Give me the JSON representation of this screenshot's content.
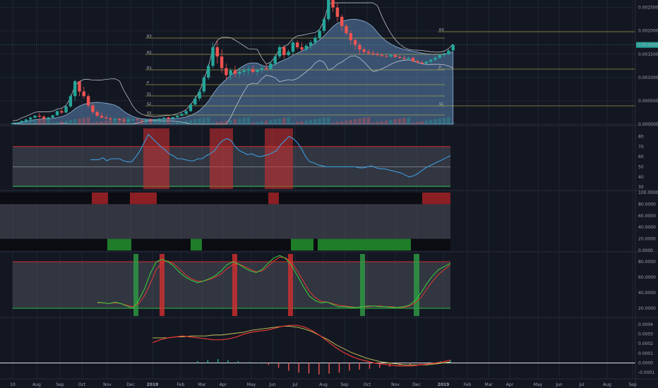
{
  "colors": {
    "background": "#131722",
    "grid": "#1f2433",
    "up": "#26a69a",
    "down": "#ef5350",
    "pivot": "#b9b44a",
    "band_fill": "#5b84b1",
    "rsi_line": "#3d9bdc",
    "red_zone": "#d32f2f",
    "green_zone": "#2e9e44",
    "stoch_k": "#3ad13a",
    "stoch_d": "#e53935",
    "signal": "#c9c958",
    "current_price_bg": "#26a69a"
  },
  "price_axis": {
    "ticks": [
      "0.0025000",
      "0.0020000",
      "0.0015000",
      "0.0010000",
      "0.0005000",
      "0.0000000"
    ],
    "current_price": "0.0016982"
  },
  "pivots": {
    "labels": [
      "R3",
      "R2",
      "R1",
      "P",
      "S1",
      "S2",
      "S3"
    ],
    "right_labels": [
      "R3",
      "P",
      "S1"
    ]
  },
  "rsi_axis": {
    "ticks": [
      "80",
      "70",
      "60",
      "50",
      "40",
      "30"
    ]
  },
  "mfi_axis": {
    "ticks": [
      "100.0000",
      "80.0000",
      "60.0000",
      "40.0000",
      "20.0000",
      "0.0000"
    ]
  },
  "stoch_axis": {
    "ticks": [
      "80.0000",
      "60.0000",
      "40.0000",
      "20.0000"
    ]
  },
  "macd_axis": {
    "ticks": [
      "0.0004",
      "0.0003",
      "0.0002",
      "0.0001",
      "0.0000",
      "-0.0001"
    ]
  },
  "time_axis": {
    "labels": [
      "10",
      "Aug",
      "Sep",
      "Oct",
      "Nov",
      "Dec",
      "2018",
      "Feb",
      "Mar",
      "Apr",
      "May",
      "Jun",
      "Jul",
      "Aug",
      "Sep",
      "Oct",
      "Nov",
      "Dec",
      "2019",
      "Feb",
      "Mar",
      "Apr",
      "May",
      "Jun",
      "Jul",
      "Aug",
      "Sep"
    ]
  },
  "chart_data": [
    {
      "type": "candlestick",
      "name": "price",
      "ylim": [
        0,
        0.0026
      ],
      "x_unit": "weeks",
      "candles": [
        [
          1e-05,
          2e-05,
          1e-05,
          2e-05
        ],
        [
          2e-05,
          4e-05,
          2e-05,
          3e-05
        ],
        [
          3e-05,
          8e-05,
          3e-05,
          7e-05
        ],
        [
          7e-05,
          0.00012,
          6e-05,
          0.0001
        ],
        [
          0.0001,
          0.00016,
          8e-05,
          0.00014
        ],
        [
          0.00014,
          0.0002,
          0.00012,
          0.00018
        ],
        [
          0.00018,
          0.00024,
          0.00014,
          0.00016
        ],
        [
          0.00016,
          0.00019,
          0.0001,
          0.00012
        ],
        [
          0.00012,
          0.00016,
          0.0001,
          0.00014
        ],
        [
          0.00014,
          0.0002,
          0.00012,
          0.00019
        ],
        [
          0.00019,
          0.0003,
          0.00017,
          0.00028
        ],
        [
          0.00028,
          0.00034,
          0.00022,
          0.00025
        ],
        [
          0.00025,
          0.0004,
          0.00023,
          0.00038
        ],
        [
          0.00038,
          0.00064,
          0.00035,
          0.0006
        ],
        [
          0.0006,
          0.00095,
          0.0005,
          0.00092
        ],
        [
          0.00092,
          0.0009,
          0.0006,
          0.0007
        ],
        [
          0.0007,
          0.0008,
          0.00055,
          0.0006
        ],
        [
          0.0006,
          0.00065,
          0.00035,
          0.0004
        ],
        [
          0.0004,
          0.00045,
          0.00022,
          0.00026
        ],
        [
          0.00026,
          0.0003,
          0.00015,
          0.00018
        ],
        [
          0.00018,
          0.00025,
          0.00012,
          0.00014
        ],
        [
          0.00014,
          0.0002,
          0.0001,
          0.00012
        ],
        [
          0.00012,
          0.00016,
          9e-05,
          0.0001
        ],
        [
          0.0001,
          0.00014,
          8e-05,
          0.00011
        ],
        [
          0.00011,
          0.00013,
          8e-05,
          9e-05
        ],
        [
          9e-05,
          0.00011,
          7e-05,
          8e-05
        ],
        [
          8e-05,
          0.0001,
          6e-05,
          9e-05
        ],
        [
          9e-05,
          0.00012,
          7e-05,
          0.0001
        ],
        [
          0.0001,
          0.00012,
          8e-05,
          9e-05
        ],
        [
          9e-05,
          0.0001,
          7e-05,
          8e-05
        ],
        [
          8e-05,
          0.00011,
          7e-05,
          0.0001
        ],
        [
          0.0001,
          0.00012,
          8e-05,
          9e-05
        ],
        [
          9e-05,
          0.00011,
          7e-05,
          0.0001
        ],
        [
          0.0001,
          0.00013,
          8e-05,
          0.00012
        ],
        [
          0.00012,
          0.00015,
          0.0001,
          0.00014
        ],
        [
          0.00014,
          0.00016,
          0.00011,
          0.00012
        ],
        [
          0.00012,
          0.00016,
          0.0001,
          0.00015
        ],
        [
          0.00015,
          0.0002,
          0.00013,
          0.00018
        ],
        [
          0.00018,
          0.00024,
          0.00016,
          0.00022
        ],
        [
          0.00022,
          0.0003,
          0.0002,
          0.00028
        ],
        [
          0.00028,
          0.00045,
          0.00026,
          0.00042
        ],
        [
          0.00042,
          0.0006,
          0.0004,
          0.00055
        ],
        [
          0.00055,
          0.00075,
          0.0005,
          0.0007
        ],
        [
          0.0007,
          0.00105,
          0.00065,
          0.001
        ],
        [
          0.001,
          0.0013,
          0.00095,
          0.00125
        ],
        [
          0.00125,
          0.00175,
          0.0012,
          0.00165
        ],
        [
          0.00165,
          0.0018,
          0.0013,
          0.00145
        ],
        [
          0.00145,
          0.0016,
          0.0011,
          0.0012
        ],
        [
          0.0012,
          0.0013,
          0.00095,
          0.00105
        ],
        [
          0.00105,
          0.0012,
          0.00095,
          0.00115
        ],
        [
          0.00115,
          0.00125,
          0.001,
          0.00108
        ],
        [
          0.00108,
          0.0012,
          0.001,
          0.00112
        ],
        [
          0.00112,
          0.00122,
          0.00105,
          0.00115
        ],
        [
          0.00115,
          0.00125,
          0.00105,
          0.00118
        ],
        [
          0.00118,
          0.00125,
          0.00108,
          0.00112
        ],
        [
          0.00112,
          0.0012,
          0.00105,
          0.00116
        ],
        [
          0.00116,
          0.00125,
          0.0011,
          0.0012
        ],
        [
          0.0012,
          0.0013,
          0.00115,
          0.00118
        ],
        [
          0.00118,
          0.00135,
          0.00115,
          0.0013
        ],
        [
          0.0013,
          0.0015,
          0.00125,
          0.00145
        ],
        [
          0.00145,
          0.0017,
          0.0014,
          0.00165
        ],
        [
          0.00165,
          0.0017,
          0.0014,
          0.00148
        ],
        [
          0.00148,
          0.0016,
          0.00145,
          0.00155
        ],
        [
          0.00155,
          0.0018,
          0.0015,
          0.00175
        ],
        [
          0.00175,
          0.0018,
          0.0016,
          0.00165
        ],
        [
          0.00165,
          0.00175,
          0.00155,
          0.0016
        ],
        [
          0.0016,
          0.00172,
          0.00155,
          0.00168
        ],
        [
          0.00168,
          0.0018,
          0.0016,
          0.00175
        ],
        [
          0.00175,
          0.0019,
          0.0017,
          0.00185
        ],
        [
          0.00185,
          0.00205,
          0.0018,
          0.002
        ],
        [
          0.002,
          0.0023,
          0.00195,
          0.00225
        ],
        [
          0.00225,
          0.0028,
          0.0022,
          0.0027
        ],
        [
          0.0027,
          0.0028,
          0.0024,
          0.0025
        ],
        [
          0.0025,
          0.0026,
          0.0022,
          0.0023
        ],
        [
          0.0023,
          0.00235,
          0.002,
          0.0021
        ],
        [
          0.0021,
          0.00215,
          0.0019,
          0.00195
        ],
        [
          0.00195,
          0.002,
          0.0017,
          0.0018
        ],
        [
          0.0018,
          0.00185,
          0.0016,
          0.0017
        ],
        [
          0.0017,
          0.00175,
          0.0015,
          0.0016
        ],
        [
          0.0016,
          0.00165,
          0.0015,
          0.00155
        ],
        [
          0.00155,
          0.0016,
          0.00148,
          0.00152
        ],
        [
          0.00152,
          0.00158,
          0.00146,
          0.0015
        ],
        [
          0.0015,
          0.00155,
          0.00145,
          0.00148
        ],
        [
          0.00148,
          0.00152,
          0.00144,
          0.00146
        ],
        [
          0.00146,
          0.0015,
          0.00143,
          0.00145
        ],
        [
          0.00145,
          0.0015,
          0.00142,
          0.00148
        ],
        [
          0.00148,
          0.0015,
          0.00142,
          0.00144
        ],
        [
          0.00144,
          0.00148,
          0.0014,
          0.00142
        ],
        [
          0.00142,
          0.00146,
          0.00138,
          0.0014
        ],
        [
          0.0014,
          0.00145,
          0.00136,
          0.00142
        ],
        [
          0.00142,
          0.00145,
          0.00132,
          0.00135
        ],
        [
          0.00135,
          0.00138,
          0.0013,
          0.00132
        ],
        [
          0.00132,
          0.00136,
          0.00128,
          0.0013
        ],
        [
          0.0013,
          0.00136,
          0.00128,
          0.00134
        ],
        [
          0.00134,
          0.0014,
          0.0013,
          0.00138
        ],
        [
          0.00138,
          0.00145,
          0.00135,
          0.00142
        ],
        [
          0.00142,
          0.0015,
          0.0014,
          0.00148
        ],
        [
          0.00148,
          0.00155,
          0.00145,
          0.0015
        ],
        [
          0.0015,
          0.0016,
          0.00148,
          0.00158
        ],
        [
          0.00158,
          0.00172,
          0.00155,
          0.0017
        ]
      ]
    },
    {
      "type": "line",
      "name": "rsi",
      "ylim": [
        28,
        88
      ],
      "values": [
        57,
        57,
        57,
        59,
        56,
        58,
        58,
        58,
        56,
        55,
        55,
        60,
        66,
        74,
        82,
        78,
        74,
        70,
        67,
        63,
        61,
        58,
        58,
        57,
        56,
        56,
        58,
        58,
        61,
        63,
        66,
        72,
        76,
        78,
        76,
        70,
        66,
        64,
        62,
        63,
        61,
        60,
        61,
        62,
        64,
        66,
        72,
        76,
        80,
        78,
        74,
        68,
        60,
        55,
        54,
        52,
        51,
        50,
        50,
        50,
        50,
        50,
        50,
        50,
        50,
        49,
        49,
        50,
        51,
        49,
        48,
        48,
        47,
        46,
        45,
        44,
        42,
        40,
        41,
        43,
        46,
        49,
        51,
        53,
        55,
        57,
        59,
        61
      ]
    },
    {
      "type": "line",
      "name": "stochastic",
      "ylim": [
        10,
        90
      ],
      "k": [
        28,
        27,
        26,
        28,
        26,
        23,
        20,
        30,
        45,
        65,
        80,
        83,
        80,
        74,
        66,
        60,
        56,
        53,
        55,
        58,
        62,
        68,
        76,
        80,
        77,
        72,
        68,
        66,
        70,
        78,
        85,
        88,
        84,
        75,
        62,
        48,
        36,
        30,
        27,
        28,
        25,
        22,
        22,
        21,
        21,
        22,
        23,
        23,
        22,
        22,
        21,
        21,
        22,
        24,
        30,
        40,
        52,
        62,
        70,
        74,
        78
      ],
      "d": [
        27,
        27,
        26,
        27,
        26,
        24,
        22,
        26,
        36,
        52,
        70,
        79,
        81,
        77,
        70,
        63,
        58,
        55,
        55,
        57,
        60,
        64,
        71,
        76,
        77,
        74,
        70,
        67,
        68,
        74,
        81,
        86,
        85,
        79,
        68,
        55,
        42,
        34,
        29,
        28,
        26,
        24,
        23,
        22,
        21,
        22,
        22,
        23,
        23,
        22,
        22,
        21,
        21,
        23,
        27,
        34,
        45,
        55,
        64,
        70,
        76
      ]
    },
    {
      "type": "line",
      "name": "macd",
      "ylim": [
        -0.00015,
        0.00045
      ],
      "macd": [
        0.00021,
        0.00024,
        0.00026,
        0.00027,
        0.00028,
        0.00027,
        0.00026,
        0.00025,
        0.00024,
        0.00024,
        0.00025,
        0.00027,
        0.0003,
        0.00032,
        0.00033,
        0.00034,
        0.00036,
        0.00038,
        0.00039,
        0.00039,
        0.00037,
        0.00033,
        0.00028,
        0.00022,
        0.00016,
        0.00011,
        7e-05,
        4e-05,
        2e-05,
        0.0,
        -1e-05,
        -2e-05,
        -3e-05,
        -3e-05,
        -3e-05,
        -2e-05,
        -1e-05,
        0.0,
        1e-05,
        3e-05
      ],
      "signal": [
        0.00026,
        0.00026,
        0.00026,
        0.00027,
        0.00027,
        0.00028,
        0.00028,
        0.00028,
        0.00029,
        0.00029,
        0.0003,
        0.00031,
        0.00032,
        0.00034,
        0.00035,
        0.00036,
        0.00037,
        0.00038,
        0.00038,
        0.00037,
        0.00035,
        0.00032,
        0.00028,
        0.00024,
        0.00019,
        0.00015,
        0.00011,
        8e-05,
        5e-05,
        3e-05,
        1e-05,
        0.0,
        -1e-05,
        -2e-05,
        -2e-05,
        -2e-05,
        -2e-05,
        -1e-05,
        0.0,
        1e-05
      ],
      "histogram": [
        2e-05,
        3e-05,
        4e-05,
        3e-05,
        2e-05,
        1e-05,
        0.0,
        -2e-05,
        -5e-05,
        -8e-05,
        -0.0001,
        -0.00011,
        -0.00012,
        -0.00011,
        -0.0001,
        -8e-05,
        -7e-05,
        -6e-05,
        -5e-05,
        -4e-05,
        -3e-05,
        -2e-05,
        -1e-05,
        1e-05,
        2e-05,
        3e-05
      ]
    }
  ]
}
